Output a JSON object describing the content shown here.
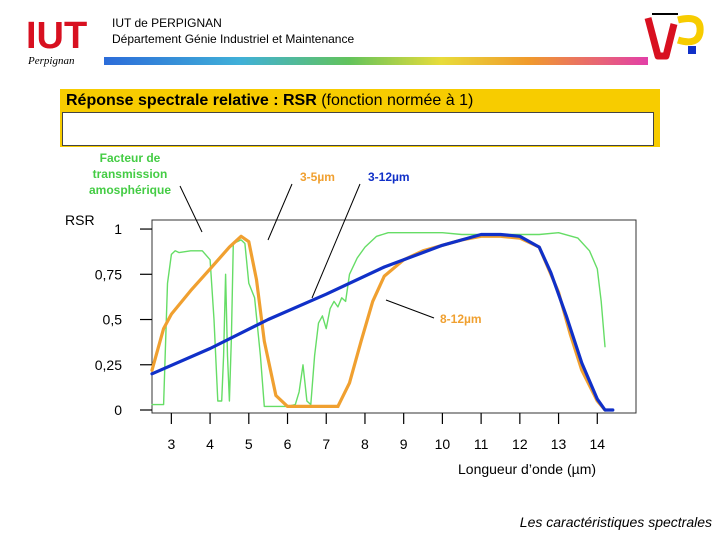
{
  "header": {
    "logo_text": "IUT",
    "logo_sub": "Perpignan",
    "line1": "IUT de PERPIGNAN",
    "line2": "Département Génie Industriel et Maintenance"
  },
  "slide": {
    "title_bold": "Réponse spectrale relative : RSR",
    "title_rest": " (fonction normée à 1)",
    "footer": "Les caractéristiques spectrales"
  },
  "annotations": {
    "atmos_line1": "Facteur de",
    "atmos_line2": "transmission",
    "atmos_line3": "amosphérique",
    "band_35": "3-5µm",
    "band_312": "3-12µm",
    "band_812": "8-12µm"
  },
  "colors": {
    "orange": "#f0a030",
    "blue": "#1030c8",
    "green": "#66dd66",
    "atmos_label": "#44cc44",
    "band_label": "#f0a030",
    "blue_label": "#1030c8"
  },
  "chart_data": {
    "type": "line",
    "xlabel": "Longueur d’onde (µm)",
    "ylabel": "RSR",
    "xlim": [
      2.5,
      15.0
    ],
    "ylim": [
      0,
      1.05
    ],
    "x_ticks": [
      "3",
      "4",
      "5",
      "6",
      "7",
      "8",
      "9",
      "10",
      "11",
      "12",
      "13",
      "14"
    ],
    "y_ticks": [
      "0",
      "0,25",
      "0,5",
      "0,75",
      "1"
    ],
    "series": [
      {
        "name": "3-5µm",
        "color": "#f0a030",
        "x": [
          2.5,
          2.8,
          3.0,
          3.5,
          4.0,
          4.5,
          4.8,
          5.0,
          5.2,
          5.4,
          5.7,
          6.0,
          6.5,
          7.0,
          7.3
        ],
        "y": [
          0.22,
          0.45,
          0.53,
          0.66,
          0.78,
          0.9,
          0.96,
          0.93,
          0.72,
          0.38,
          0.08,
          0.02,
          0.02,
          0.02,
          0.02
        ]
      },
      {
        "name": "8-12µm",
        "color": "#f0a030",
        "x": [
          7.3,
          7.6,
          7.9,
          8.2,
          8.5,
          9.0,
          9.5,
          10.0,
          10.5,
          11.0,
          11.5,
          12.0,
          12.5,
          13.0,
          13.3,
          13.6,
          14.0,
          14.2
        ],
        "y": [
          0.02,
          0.15,
          0.38,
          0.6,
          0.74,
          0.83,
          0.88,
          0.91,
          0.94,
          0.96,
          0.96,
          0.95,
          0.9,
          0.65,
          0.42,
          0.22,
          0.05,
          0.0
        ]
      },
      {
        "name": "3-12µm",
        "color": "#1030c8",
        "x": [
          2.5,
          4.0,
          5.5,
          7.0,
          8.5,
          10.0,
          11.0,
          11.5,
          12.0,
          12.5,
          12.8,
          13.2,
          13.6,
          14.0,
          14.2,
          14.4
        ],
        "y": [
          0.2,
          0.34,
          0.5,
          0.64,
          0.79,
          0.91,
          0.97,
          0.97,
          0.96,
          0.9,
          0.76,
          0.52,
          0.26,
          0.06,
          0.0,
          0.0
        ]
      },
      {
        "name": "",
        "color": "#66dd66",
        "x": [
          2.5,
          2.8,
          2.9,
          3.0,
          3.1,
          3.2,
          3.5,
          3.8,
          4.0,
          4.1,
          4.2,
          4.3,
          4.35,
          4.4,
          4.45,
          4.5,
          4.55,
          4.6,
          4.8,
          4.9,
          5.0,
          5.15,
          5.3,
          5.4,
          5.5,
          5.6,
          5.8,
          6.0,
          6.2,
          6.3,
          6.4,
          6.5,
          6.6,
          6.7,
          6.8,
          6.9,
          7.0,
          7.1,
          7.2,
          7.3,
          7.4,
          7.5,
          7.6,
          7.8,
          8.0,
          8.3,
          8.6,
          9.0,
          9.5,
          10.0,
          10.5,
          11.0,
          11.5,
          12.0,
          12.5,
          13.0,
          13.5,
          13.8,
          14.0,
          14.1,
          14.2
        ],
        "y": [
          0.03,
          0.03,
          0.7,
          0.86,
          0.88,
          0.87,
          0.88,
          0.88,
          0.83,
          0.5,
          0.05,
          0.05,
          0.3,
          0.75,
          0.3,
          0.05,
          0.4,
          0.92,
          0.94,
          0.92,
          0.7,
          0.62,
          0.3,
          0.02,
          0.02,
          0.02,
          0.02,
          0.02,
          0.03,
          0.1,
          0.25,
          0.05,
          0.03,
          0.3,
          0.48,
          0.52,
          0.45,
          0.56,
          0.6,
          0.57,
          0.62,
          0.6,
          0.75,
          0.84,
          0.9,
          0.96,
          0.98,
          0.98,
          0.98,
          0.98,
          0.97,
          0.97,
          0.97,
          0.97,
          0.97,
          0.98,
          0.95,
          0.88,
          0.78,
          0.6,
          0.35
        ]
      }
    ]
  }
}
